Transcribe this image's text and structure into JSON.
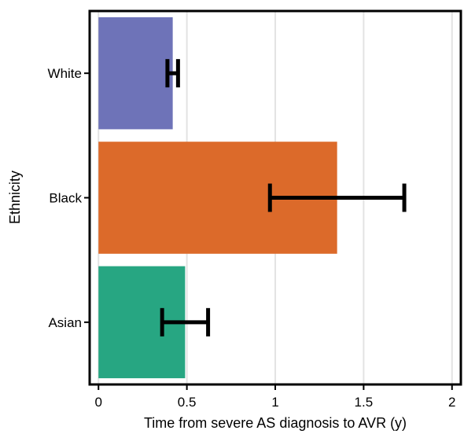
{
  "chart_data": {
    "type": "bar",
    "orientation": "horizontal",
    "categories": [
      "White",
      "Black",
      "Asian"
    ],
    "values": [
      0.42,
      1.35,
      0.49
    ],
    "error_low": [
      0.39,
      0.97,
      0.36
    ],
    "error_high": [
      0.45,
      1.73,
      0.62
    ],
    "bar_colors": [
      "#6e73b8",
      "#dc6a2a",
      "#27a682"
    ],
    "xlabel": "Time from severe AS diagnosis to AVR (y)",
    "ylabel": "Ethnicity",
    "xlim": [
      -0.05,
      2.05
    ],
    "x_ticks": [
      0,
      0.5,
      1,
      1.5,
      2
    ],
    "x_tick_labels": [
      "0",
      "0.5",
      "1",
      "1.5",
      "2"
    ],
    "grid": "vertical major lines",
    "legend": "none"
  }
}
